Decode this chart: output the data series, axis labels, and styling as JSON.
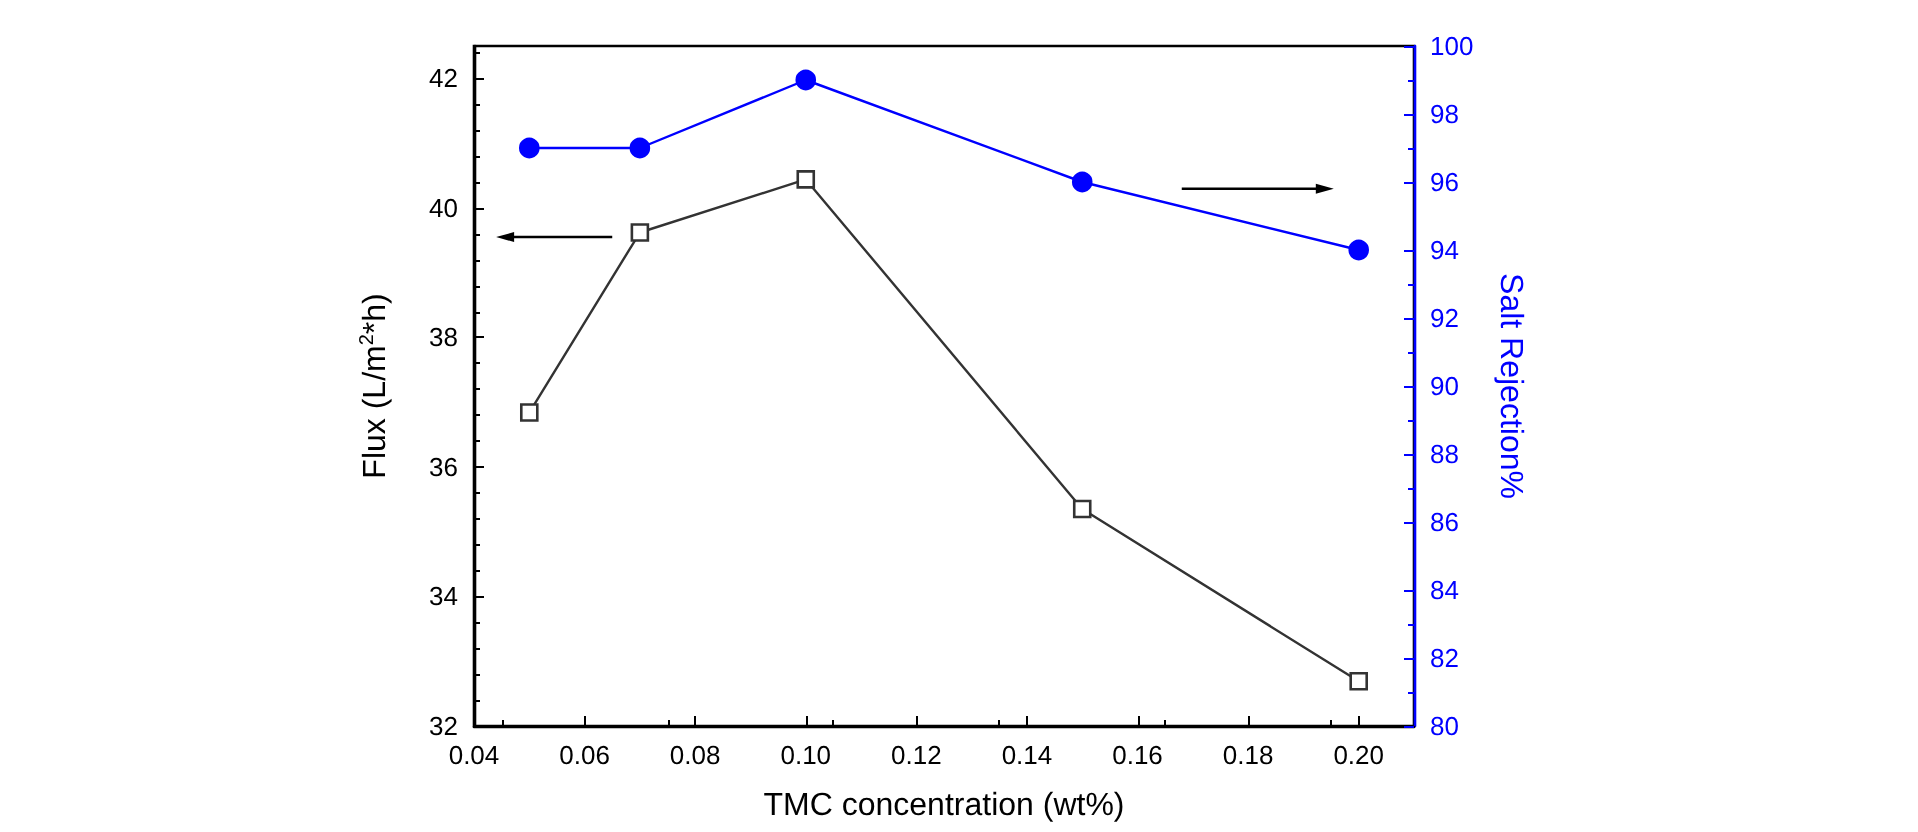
{
  "chart_data": {
    "type": "line",
    "xlabel": "TMC concentration (wt%)",
    "ylabel": "Flux (L/m$^{2}$*h)",
    "y2label": "Salt Rejection%",
    "x": [
      0.05,
      0.07,
      0.1,
      0.15,
      0.2
    ],
    "series": [
      {
        "color": "#333333",
        "marker": "square",
        "values": [
          36.84,
          39.62,
          40.44,
          35.35,
          32.69
        ]
      },
      {
        "color": "#0000ff",
        "marker": "circle",
        "axis": "y2",
        "values": [
          97,
          97,
          99,
          96,
          94
        ]
      }
    ],
    "xlim": [
      0.04,
      0.21
    ],
    "xticks": [
      {
        "value": 0.04,
        "label": "0.04"
      },
      {
        "value": 0.06,
        "label": "0.06"
      },
      {
        "value": 0.08,
        "label": "0.08"
      },
      {
        "value": 0.1,
        "label": "0.10"
      },
      {
        "value": 0.12,
        "label": "0.12"
      },
      {
        "value": 0.14,
        "label": "0.14"
      },
      {
        "value": 0.16,
        "label": "0.16"
      },
      {
        "value": 0.18,
        "label": "0.18"
      },
      {
        "value": 0.2,
        "label": "0.20"
      }
    ],
    "ylim": [
      32,
      42.5
    ],
    "yticks": [
      32,
      34,
      36,
      38,
      40,
      42
    ],
    "y2lim": [
      80,
      100
    ],
    "y2ticks": [
      80,
      82,
      84,
      86,
      88,
      90,
      92,
      94,
      96,
      98,
      100
    ],
    "line_style": "solid"
  }
}
